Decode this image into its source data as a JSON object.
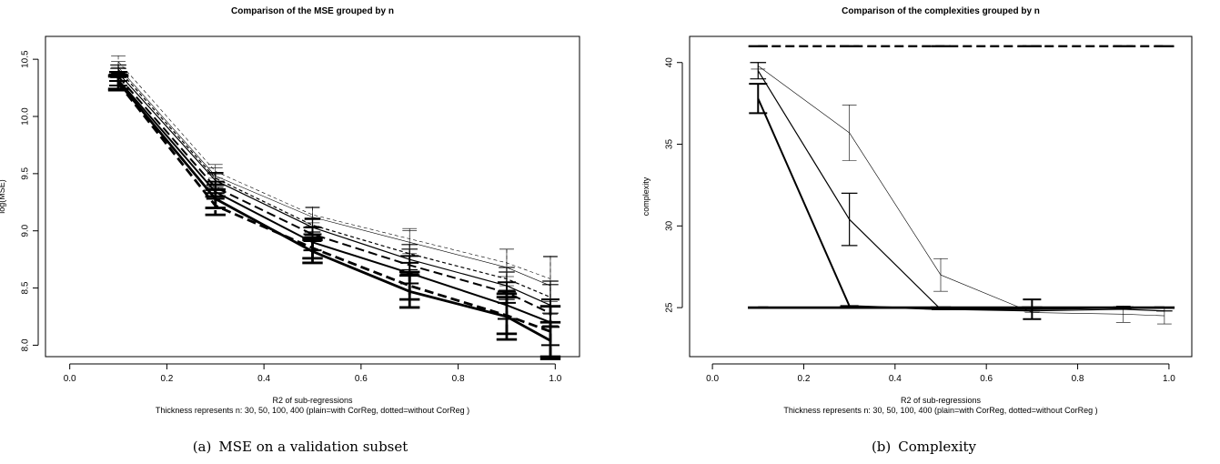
{
  "captions": [
    {
      "prefix": "(a)",
      "text": "MSE on a validation subset"
    },
    {
      "prefix": "(b)",
      "text": "Complexity"
    }
  ],
  "chart_data": [
    {
      "type": "line",
      "title": "Comparison of the MSE grouped  by n",
      "xlabel": "R2 of sub-regressions",
      "subtitle": "Thickness represents n:  30, 50, 100, 400 (plain=with CorReg, dotted=without CorReg )",
      "ylabel": "log(MSE)",
      "xlim": [
        -0.05,
        1.05
      ],
      "ylim": [
        7.9,
        10.7
      ],
      "x_ticks": [
        0.0,
        0.2,
        0.4,
        0.6,
        0.8,
        1.0
      ],
      "y_ticks": [
        8.0,
        8.5,
        9.0,
        9.5,
        10.0,
        10.5
      ],
      "x_tick_labels": [
        "0.0",
        "0.2",
        "0.4",
        "0.6",
        "0.8",
        "1.0"
      ],
      "y_tick_labels": [
        "8.0",
        "8.5",
        "9.0",
        "9.5",
        "10.0",
        "10.5"
      ],
      "x": [
        0.1,
        0.3,
        0.5,
        0.7,
        0.9,
        0.99
      ],
      "grid": false,
      "series": [
        {
          "width": 0.6,
          "dash": "dotted",
          "values": [
            10.48,
            9.52,
            9.14,
            8.93,
            8.72,
            8.58
          ],
          "err": [
            0.05,
            0.06,
            0.07,
            0.09,
            0.12,
            0.2
          ]
        },
        {
          "width": 0.6,
          "dash": "solid",
          "values": [
            10.43,
            9.48,
            9.12,
            8.9,
            8.68,
            8.52
          ],
          "err": [
            0.05,
            0.07,
            0.08,
            0.1,
            0.16,
            0.25
          ]
        },
        {
          "width": 1.2,
          "dash": "dotted",
          "values": [
            10.41,
            9.46,
            9.05,
            8.8,
            8.58,
            8.42
          ],
          "err": [
            0.04,
            0.05,
            0.06,
            0.08,
            0.1,
            0.14
          ]
        },
        {
          "width": 1.2,
          "dash": "solid",
          "values": [
            10.38,
            9.44,
            9.03,
            8.75,
            8.52,
            8.35
          ],
          "err": [
            0.04,
            0.06,
            0.07,
            0.09,
            0.12,
            0.18
          ]
        },
        {
          "width": 2.0,
          "dash": "dotted",
          "values": [
            10.35,
            9.38,
            8.97,
            8.7,
            8.46,
            8.28
          ],
          "err": [
            0.04,
            0.05,
            0.06,
            0.08,
            0.09,
            0.12
          ]
        },
        {
          "width": 2.0,
          "dash": "solid",
          "values": [
            10.32,
            9.34,
            8.9,
            8.63,
            8.35,
            8.2
          ],
          "err": [
            0.05,
            0.06,
            0.07,
            0.09,
            0.12,
            0.2
          ]
        },
        {
          "width": 2.8,
          "dash": "dotted",
          "values": [
            10.29,
            9.22,
            8.85,
            8.52,
            8.26,
            8.12
          ],
          "err": [
            0.06,
            0.08,
            0.09,
            0.12,
            0.16,
            0.22
          ]
        },
        {
          "width": 2.8,
          "dash": "solid",
          "values": [
            10.3,
            9.28,
            8.82,
            8.47,
            8.25,
            8.04
          ],
          "err": [
            0.06,
            0.08,
            0.1,
            0.14,
            0.2,
            0.16
          ]
        }
      ]
    },
    {
      "type": "line",
      "title": "Comparison of the complexities grouped  by n",
      "xlabel": "R2 of sub-regressions",
      "subtitle": "Thickness represents n:  30, 50, 100, 400 (plain=with CorReg, dotted=without CorReg )",
      "ylabel": "complexity",
      "xlim": [
        -0.05,
        1.05
      ],
      "ylim": [
        22.0,
        41.6
      ],
      "x_ticks": [
        0.0,
        0.2,
        0.4,
        0.6,
        0.8,
        1.0
      ],
      "y_ticks": [
        25,
        30,
        35,
        40
      ],
      "x_tick_labels": [
        "0.0",
        "0.2",
        "0.4",
        "0.6",
        "0.8",
        "1.0"
      ],
      "y_tick_labels": [
        "25",
        "30",
        "35",
        "40"
      ],
      "x": [
        0.1,
        0.3,
        0.5,
        0.7,
        0.9,
        0.99
      ],
      "grid": false,
      "series": [
        {
          "width": 2.4,
          "dash": "dotted",
          "values": [
            41.0,
            41.0,
            41.0,
            41.0,
            41.0,
            41.0
          ],
          "err": [
            0,
            0,
            0,
            0,
            0,
            0
          ]
        },
        {
          "width": 0.6,
          "dash": "solid",
          "values": [
            39.8,
            35.7,
            27.0,
            24.7,
            24.6,
            24.5
          ],
          "err": [
            0.2,
            1.7,
            1.0,
            0,
            0.5,
            0.5
          ]
        },
        {
          "width": 1.2,
          "dash": "solid",
          "values": [
            39.5,
            30.4,
            24.9,
            24.8,
            24.9,
            24.8
          ],
          "err": [
            0.5,
            1.6,
            0,
            0,
            0,
            0
          ]
        },
        {
          "width": 2.0,
          "dash": "solid",
          "values": [
            37.8,
            25.1,
            24.9,
            24.9,
            25.0,
            25.0
          ],
          "err": [
            0.9,
            0,
            0,
            0.6,
            0,
            0
          ]
        },
        {
          "width": 2.8,
          "dash": "solid",
          "values": [
            25.0,
            25.0,
            25.0,
            25.0,
            25.0,
            25.0
          ],
          "err": [
            0,
            0,
            0,
            0,
            0,
            0
          ]
        }
      ]
    }
  ]
}
